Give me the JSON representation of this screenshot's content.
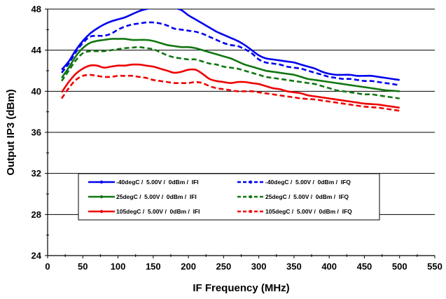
{
  "chart_data": {
    "type": "line",
    "title": "",
    "xlabel": "IF Frequency (MHz)",
    "ylabel": "Output IP3 (dBm)",
    "xlim": [
      0,
      550
    ],
    "ylim": [
      24,
      48
    ],
    "xticks": [
      0,
      50,
      100,
      150,
      200,
      250,
      300,
      350,
      400,
      450,
      500,
      550
    ],
    "yticks": [
      24,
      28,
      32,
      36,
      40,
      44,
      48
    ],
    "grid": true,
    "legend_position": "inside-bottom",
    "x": [
      20,
      30,
      40,
      50,
      60,
      70,
      80,
      90,
      100,
      110,
      120,
      130,
      140,
      150,
      160,
      170,
      180,
      190,
      200,
      210,
      220,
      230,
      240,
      250,
      260,
      270,
      280,
      290,
      300,
      310,
      320,
      330,
      340,
      350,
      360,
      370,
      380,
      390,
      400,
      410,
      420,
      430,
      440,
      450,
      460,
      470,
      480,
      490,
      500
    ],
    "series": [
      {
        "name": "-40degC /  5.00V /  0dBm /  IFI",
        "color": "#0000ee",
        "dash": "solid",
        "values": [
          42.1,
          42.9,
          44.0,
          44.9,
          45.6,
          46.1,
          46.5,
          46.8,
          47.0,
          47.2,
          47.5,
          47.8,
          48.0,
          48.1,
          48.1,
          48.1,
          48.1,
          47.9,
          47.4,
          47.0,
          46.6,
          46.2,
          45.8,
          45.5,
          45.2,
          44.9,
          44.5,
          44.0,
          43.5,
          43.2,
          43.1,
          43.0,
          42.9,
          42.8,
          42.6,
          42.4,
          42.2,
          41.9,
          41.7,
          41.6,
          41.6,
          41.6,
          41.5,
          41.5,
          41.5,
          41.4,
          41.3,
          41.2,
          41.1
        ]
      },
      {
        "name": "-40degC /  5.00V /  0dBm /  IFQ",
        "color": "#0000ee",
        "dash": "dashed",
        "values": [
          41.8,
          42.7,
          43.8,
          44.7,
          45.3,
          45.4,
          45.4,
          45.6,
          46.0,
          46.3,
          46.5,
          46.6,
          46.7,
          46.7,
          46.6,
          46.4,
          46.1,
          46.0,
          45.9,
          45.8,
          45.6,
          45.3,
          45.0,
          44.7,
          44.5,
          44.4,
          44.1,
          43.7,
          43.1,
          42.8,
          42.7,
          42.6,
          42.4,
          42.3,
          42.2,
          42.0,
          41.8,
          41.6,
          41.4,
          41.3,
          41.2,
          41.2,
          41.1,
          41.0,
          41.0,
          40.9,
          40.8,
          40.7,
          40.6
        ]
      },
      {
        "name": "25degC /  5.00V /  0dBm /  IFI",
        "color": "#117711",
        "dash": "solid",
        "values": [
          41.3,
          42.3,
          43.4,
          44.2,
          44.7,
          44.9,
          45.0,
          45.1,
          45.1,
          45.1,
          45.0,
          45.0,
          45.0,
          44.9,
          44.7,
          44.5,
          44.4,
          44.3,
          44.3,
          44.2,
          44.0,
          43.8,
          43.6,
          43.4,
          43.2,
          42.9,
          42.6,
          42.4,
          42.2,
          42.0,
          41.9,
          41.8,
          41.7,
          41.6,
          41.4,
          41.2,
          41.1,
          41.0,
          40.9,
          40.8,
          40.7,
          40.6,
          40.5,
          40.4,
          40.3,
          40.2,
          40.1,
          40.05,
          40.0
        ]
      },
      {
        "name": "25degC /  5.00V /  0dBm /  IFQ",
        "color": "#117711",
        "dash": "dashed",
        "values": [
          41.0,
          42.0,
          43.0,
          43.7,
          43.9,
          43.9,
          43.9,
          44.0,
          44.1,
          44.2,
          44.25,
          44.3,
          44.2,
          44.1,
          43.8,
          43.5,
          43.3,
          43.2,
          43.1,
          43.1,
          42.9,
          42.7,
          42.6,
          42.4,
          42.3,
          42.2,
          42.0,
          41.8,
          41.6,
          41.4,
          41.3,
          41.2,
          41.1,
          41.0,
          40.9,
          40.8,
          40.7,
          40.5,
          40.3,
          40.1,
          40.0,
          39.9,
          39.8,
          39.7,
          39.7,
          39.6,
          39.5,
          39.4,
          39.3
        ]
      },
      {
        "name": "105degC /  5.00V /  0dBm /  IFI",
        "color": "#ee0000",
        "dash": "solid",
        "values": [
          39.9,
          40.9,
          41.7,
          42.2,
          42.5,
          42.5,
          42.3,
          42.4,
          42.5,
          42.5,
          42.6,
          42.6,
          42.5,
          42.4,
          42.2,
          42.0,
          41.8,
          41.9,
          42.1,
          42.1,
          41.7,
          41.2,
          41.0,
          40.9,
          40.8,
          40.9,
          40.9,
          40.8,
          40.7,
          40.5,
          40.3,
          40.2,
          40.0,
          39.9,
          39.8,
          39.6,
          39.5,
          39.4,
          39.3,
          39.2,
          39.1,
          39.0,
          38.9,
          38.8,
          38.75,
          38.7,
          38.6,
          38.5,
          38.4
        ]
      },
      {
        "name": "105degC /  5.00V /  0dBm /  IFQ",
        "color": "#ee0000",
        "dash": "dashed",
        "values": [
          39.3,
          40.3,
          41.1,
          41.5,
          41.6,
          41.5,
          41.4,
          41.4,
          41.5,
          41.5,
          41.5,
          41.4,
          41.3,
          41.1,
          41.0,
          40.9,
          40.8,
          40.8,
          40.8,
          40.9,
          40.8,
          40.5,
          40.3,
          40.2,
          40.1,
          40.0,
          40.0,
          40.0,
          39.9,
          39.8,
          39.7,
          39.6,
          39.5,
          39.4,
          39.3,
          39.25,
          39.2,
          39.1,
          39.0,
          38.9,
          38.8,
          38.7,
          38.6,
          38.5,
          38.45,
          38.4,
          38.3,
          38.2,
          38.1
        ]
      }
    ]
  }
}
